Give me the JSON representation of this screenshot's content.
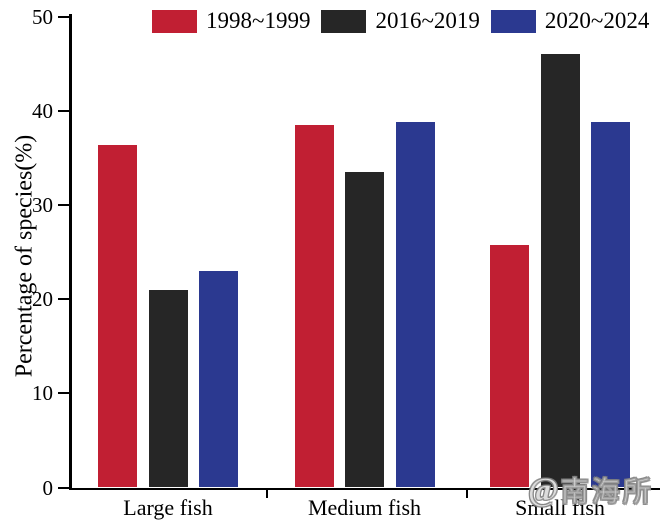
{
  "chart_data": {
    "type": "bar",
    "title": "",
    "categories": [
      "Large fish",
      "Medium fish",
      "Small fish"
    ],
    "series": [
      {
        "name": "1998~1999",
        "color": "#c11f33",
        "values": [
          36.4,
          38.5,
          25.7
        ]
      },
      {
        "name": "2016~2019",
        "color": "#262626",
        "values": [
          21.0,
          33.5,
          46.0
        ]
      },
      {
        "name": "2020~2024",
        "color": "#2b3990",
        "values": [
          23.0,
          38.8,
          38.8
        ]
      }
    ],
    "xlabel": "",
    "ylabel": "Percentage of species(%)",
    "ylim": [
      0,
      50
    ],
    "yticks": [
      0,
      10,
      20,
      30,
      40,
      50
    ],
    "grid": false,
    "legend_position": "top-center"
  },
  "watermark": {
    "logo_icon": "at-swirl-logo",
    "logo_glyph": "@",
    "text": "南海所"
  },
  "colors": {
    "axis": "#000000"
  }
}
